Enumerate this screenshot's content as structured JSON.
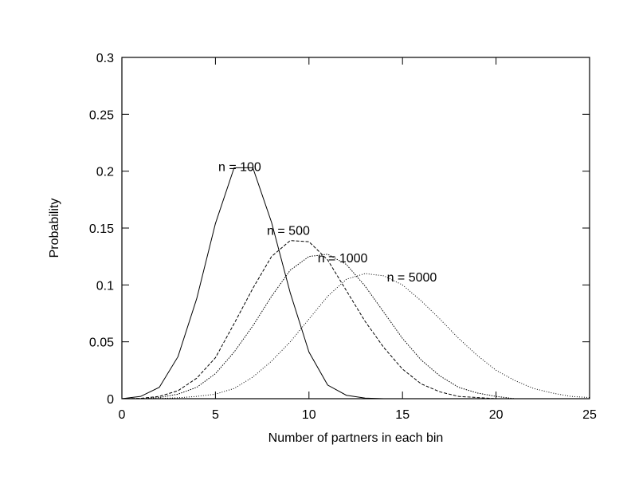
{
  "chart_data": {
    "type": "line",
    "title": "",
    "xlabel": "Number of partners in each bin",
    "ylabel": "Probability",
    "xlim": [
      0,
      25
    ],
    "ylim": [
      0,
      0.3
    ],
    "xticks": [
      0,
      5,
      10,
      15,
      20,
      25
    ],
    "xtick_labels": [
      "0",
      "5",
      "10",
      "15",
      "20",
      "25"
    ],
    "yticks": [
      0,
      0.05,
      0.1,
      0.15,
      0.2,
      0.25,
      0.3
    ],
    "ytick_labels": [
      "0",
      "0.05",
      "0.1",
      "0.15",
      "0.2",
      "0.25",
      "0.3"
    ],
    "grid": false,
    "legend": "none",
    "series": [
      {
        "label": "n = 100",
        "dash": "solid",
        "x": [
          0,
          1,
          2,
          3,
          4,
          5,
          6,
          7,
          8,
          9,
          10,
          11,
          12,
          13,
          14
        ],
        "values": [
          0.0,
          0.002,
          0.01,
          0.037,
          0.088,
          0.154,
          0.203,
          0.203,
          0.155,
          0.093,
          0.041,
          0.012,
          0.003,
          0.0005,
          0.0
        ]
      },
      {
        "label": "n = 500",
        "dash": "dashed",
        "x": [
          0,
          1,
          2,
          3,
          4,
          5,
          6,
          7,
          8,
          9,
          10,
          11,
          12,
          13,
          14,
          15,
          16,
          17,
          18,
          19,
          20
        ],
        "values": [
          0.0,
          0.0003,
          0.002,
          0.007,
          0.018,
          0.036,
          0.066,
          0.097,
          0.125,
          0.139,
          0.138,
          0.122,
          0.095,
          0.068,
          0.045,
          0.026,
          0.013,
          0.006,
          0.002,
          0.001,
          0.0
        ]
      },
      {
        "label": "n = 1000",
        "dash": "dotted",
        "x": [
          0,
          1,
          2,
          3,
          4,
          5,
          6,
          7,
          8,
          9,
          10,
          11,
          12,
          13,
          14,
          15,
          16,
          17,
          18,
          19,
          20,
          21
        ],
        "values": [
          0.0,
          0.0001,
          0.001,
          0.004,
          0.01,
          0.022,
          0.041,
          0.064,
          0.09,
          0.113,
          0.125,
          0.127,
          0.118,
          0.099,
          0.076,
          0.053,
          0.034,
          0.02,
          0.01,
          0.005,
          0.002,
          0.0
        ]
      },
      {
        "label": "n = 5000",
        "dash": "dotted",
        "x": [
          0,
          1,
          2,
          3,
          4,
          5,
          6,
          7,
          8,
          9,
          10,
          11,
          12,
          13,
          14,
          15,
          16,
          17,
          18,
          19,
          20,
          21,
          22,
          23,
          24,
          25
        ],
        "values": [
          0.0,
          0.0,
          0.0002,
          0.0008,
          0.002,
          0.004,
          0.009,
          0.019,
          0.033,
          0.05,
          0.07,
          0.09,
          0.105,
          0.11,
          0.108,
          0.1,
          0.086,
          0.07,
          0.053,
          0.038,
          0.025,
          0.016,
          0.009,
          0.005,
          0.002,
          0.001
        ]
      }
    ],
    "annotations": [
      {
        "text": "n = 100",
        "x": 6.3,
        "y": 0.2
      },
      {
        "text": "n = 500",
        "x": 8.9,
        "y": 0.144
      },
      {
        "text": "n = 1000",
        "x": 11.8,
        "y": 0.12
      },
      {
        "text": "n = 5000",
        "x": 15.5,
        "y": 0.103
      }
    ]
  }
}
